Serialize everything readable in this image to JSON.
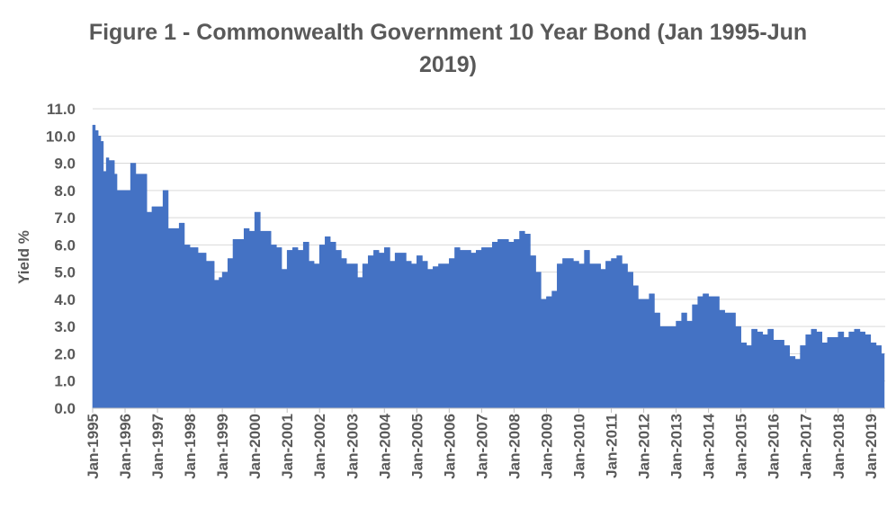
{
  "chart_data": {
    "type": "area",
    "title": "Figure 1 - Commonwealth Government 10 Year Bond (Jan 1995-Jun 2019)",
    "title_lines": [
      "Figure 1 - Commonwealth Government 10 Year Bond (Jan 1995-Jun",
      "2019)"
    ],
    "xlabel": "",
    "ylabel": "Yield %",
    "ylim": [
      0,
      11
    ],
    "yticks": [
      "0.0",
      "1.0",
      "2.0",
      "3.0",
      "4.0",
      "5.0",
      "6.0",
      "7.0",
      "8.0",
      "9.0",
      "10.0",
      "11.0"
    ],
    "xticks": [
      "Jan-1995",
      "Jan-1996",
      "Jan-1997",
      "Jan-1998",
      "Jan-1999",
      "Jan-2000",
      "Jan-2001",
      "Jan-2002",
      "Jan-2003",
      "Jan-2004",
      "Jan-2005",
      "Jan-2006",
      "Jan-2007",
      "Jan-2008",
      "Jan-2009",
      "Jan-2010",
      "Jan-2011",
      "Jan-2012",
      "Jan-2013",
      "Jan-2014",
      "Jan-2015",
      "Jan-2016",
      "Jan-2017",
      "Jan-2018",
      "Jan-2019"
    ],
    "grid": true,
    "color": "#4472C4",
    "series": [
      {
        "x": [
          1995.0,
          1995.08,
          1995.17,
          1995.25,
          1995.33,
          1995.42,
          1995.5,
          1995.58,
          1995.67,
          1995.75,
          1995.83,
          1995.92,
          1996.0,
          1996.17,
          1996.33,
          1996.5,
          1996.67,
          1996.83,
          1997.0,
          1997.17,
          1997.33,
          1997.5,
          1997.67,
          1997.83,
          1998.0,
          1998.25,
          1998.5,
          1998.75,
          1998.9,
          1999.0,
          1999.17,
          1999.33,
          1999.5,
          1999.67,
          1999.83,
          2000.0,
          2000.17,
          2000.33,
          2000.5,
          2000.67,
          2000.83,
          2001.0,
          2001.17,
          2001.33,
          2001.5,
          2001.67,
          2001.83,
          2002.0,
          2002.17,
          2002.33,
          2002.5,
          2002.67,
          2002.83,
          2003.0,
          2003.17,
          2003.33,
          2003.5,
          2003.67,
          2003.83,
          2004.0,
          2004.17,
          2004.33,
          2004.5,
          2004.67,
          2004.83,
          2005.0,
          2005.17,
          2005.33,
          2005.5,
          2005.67,
          2005.83,
          2006.0,
          2006.17,
          2006.33,
          2006.5,
          2006.67,
          2006.83,
          2007.0,
          2007.17,
          2007.33,
          2007.5,
          2007.67,
          2007.83,
          2008.0,
          2008.17,
          2008.33,
          2008.5,
          2008.67,
          2008.83,
          2009.0,
          2009.17,
          2009.33,
          2009.5,
          2009.67,
          2009.83,
          2010.0,
          2010.17,
          2010.33,
          2010.5,
          2010.67,
          2010.83,
          2011.0,
          2011.17,
          2011.33,
          2011.5,
          2011.67,
          2011.83,
          2012.0,
          2012.17,
          2012.33,
          2012.5,
          2012.67,
          2012.83,
          2013.0,
          2013.17,
          2013.33,
          2013.5,
          2013.67,
          2013.83,
          2014.0,
          2014.17,
          2014.33,
          2014.5,
          2014.67,
          2014.83,
          2015.0,
          2015.17,
          2015.33,
          2015.5,
          2015.67,
          2015.83,
          2016.0,
          2016.17,
          2016.33,
          2016.5,
          2016.67,
          2016.83,
          2017.0,
          2017.17,
          2017.33,
          2017.5,
          2017.67,
          2017.83,
          2018.0,
          2018.17,
          2018.33,
          2018.5,
          2018.67,
          2018.83,
          2019.0,
          2019.17,
          2019.33,
          2019.42
        ],
        "y": [
          10.4,
          10.2,
          10.0,
          9.8,
          8.7,
          9.2,
          9.1,
          9.1,
          8.6,
          8.0,
          8.0,
          8.0,
          8.0,
          9.0,
          8.6,
          8.6,
          7.2,
          7.4,
          7.4,
          8.0,
          6.6,
          6.6,
          6.8,
          6.0,
          5.9,
          5.7,
          5.4,
          4.7,
          4.8,
          5.0,
          5.5,
          6.2,
          6.2,
          6.6,
          6.5,
          7.2,
          6.5,
          6.5,
          6.0,
          5.9,
          5.1,
          5.8,
          5.9,
          5.8,
          6.1,
          5.4,
          5.3,
          6.0,
          6.3,
          6.1,
          5.8,
          5.5,
          5.3,
          5.3,
          4.8,
          5.3,
          5.6,
          5.8,
          5.7,
          5.9,
          5.4,
          5.7,
          5.7,
          5.4,
          5.3,
          5.6,
          5.4,
          5.1,
          5.2,
          5.3,
          5.3,
          5.5,
          5.9,
          5.8,
          5.8,
          5.7,
          5.8,
          5.9,
          5.9,
          6.1,
          6.2,
          6.2,
          6.1,
          6.2,
          6.5,
          6.4,
          5.6,
          5.0,
          4.0,
          4.1,
          4.3,
          5.3,
          5.5,
          5.5,
          5.4,
          5.3,
          5.8,
          5.3,
          5.3,
          5.1,
          5.4,
          5.5,
          5.6,
          5.3,
          5.0,
          4.5,
          4.0,
          4.0,
          4.2,
          3.5,
          3.0,
          3.0,
          3.0,
          3.2,
          3.5,
          3.2,
          3.8,
          4.1,
          4.2,
          4.1,
          4.1,
          3.6,
          3.5,
          3.5,
          3.0,
          2.4,
          2.3,
          2.9,
          2.8,
          2.7,
          2.9,
          2.5,
          2.5,
          2.3,
          1.9,
          1.8,
          2.3,
          2.7,
          2.9,
          2.8,
          2.4,
          2.6,
          2.6,
          2.8,
          2.6,
          2.8,
          2.9,
          2.8,
          2.7,
          2.4,
          2.3,
          2.0,
          1.4
        ]
      }
    ]
  }
}
